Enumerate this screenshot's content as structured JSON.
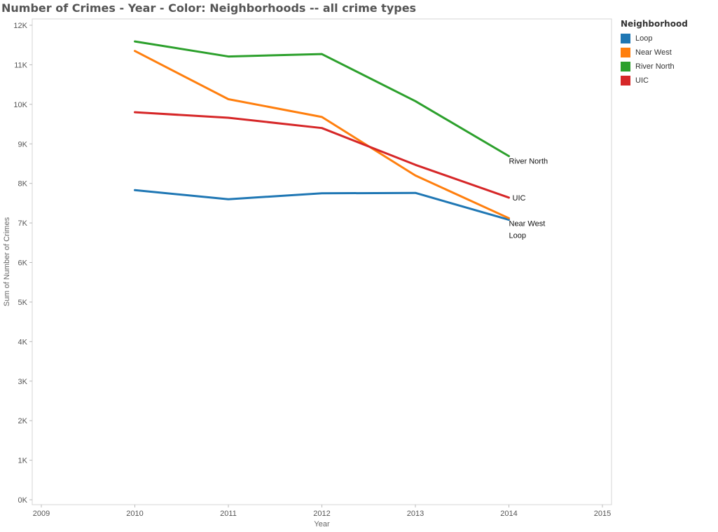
{
  "chart_data": {
    "type": "line",
    "title": "Number of Crimes - Year - Color: Neighborhoods -- all crime types",
    "xlabel": "Year",
    "ylabel": "Sum of Number of Crimes",
    "xlim": [
      2009,
      2015
    ],
    "ylim": [
      0,
      12000
    ],
    "x_ticks": [
      "2009",
      "2010",
      "2011",
      "2012",
      "2013",
      "2014",
      "2015"
    ],
    "y_ticks": [
      "0K",
      "1K",
      "2K",
      "3K",
      "4K",
      "5K",
      "6K",
      "7K",
      "8K",
      "9K",
      "10K",
      "11K",
      "12K"
    ],
    "x": [
      2010,
      2011,
      2012,
      2013,
      2014
    ],
    "legend_title": "Neighborhood",
    "legend_position": "right",
    "grid": false,
    "series": [
      {
        "name": "Loop",
        "color": "#1f77b4",
        "values": [
          7830,
          7600,
          7750,
          7760,
          7080
        ],
        "end_label": "Loop"
      },
      {
        "name": "Near West",
        "color": "#ff7f0e",
        "values": [
          11350,
          10130,
          9680,
          8200,
          7120
        ],
        "end_label": "Near West"
      },
      {
        "name": "River North",
        "color": "#2ca02c",
        "values": [
          11590,
          11210,
          11270,
          10080,
          8690
        ],
        "end_label": "River North"
      },
      {
        "name": "UIC",
        "color": "#d62728",
        "values": [
          9800,
          9660,
          9400,
          8470,
          7640
        ],
        "end_label": "UIC"
      }
    ]
  }
}
